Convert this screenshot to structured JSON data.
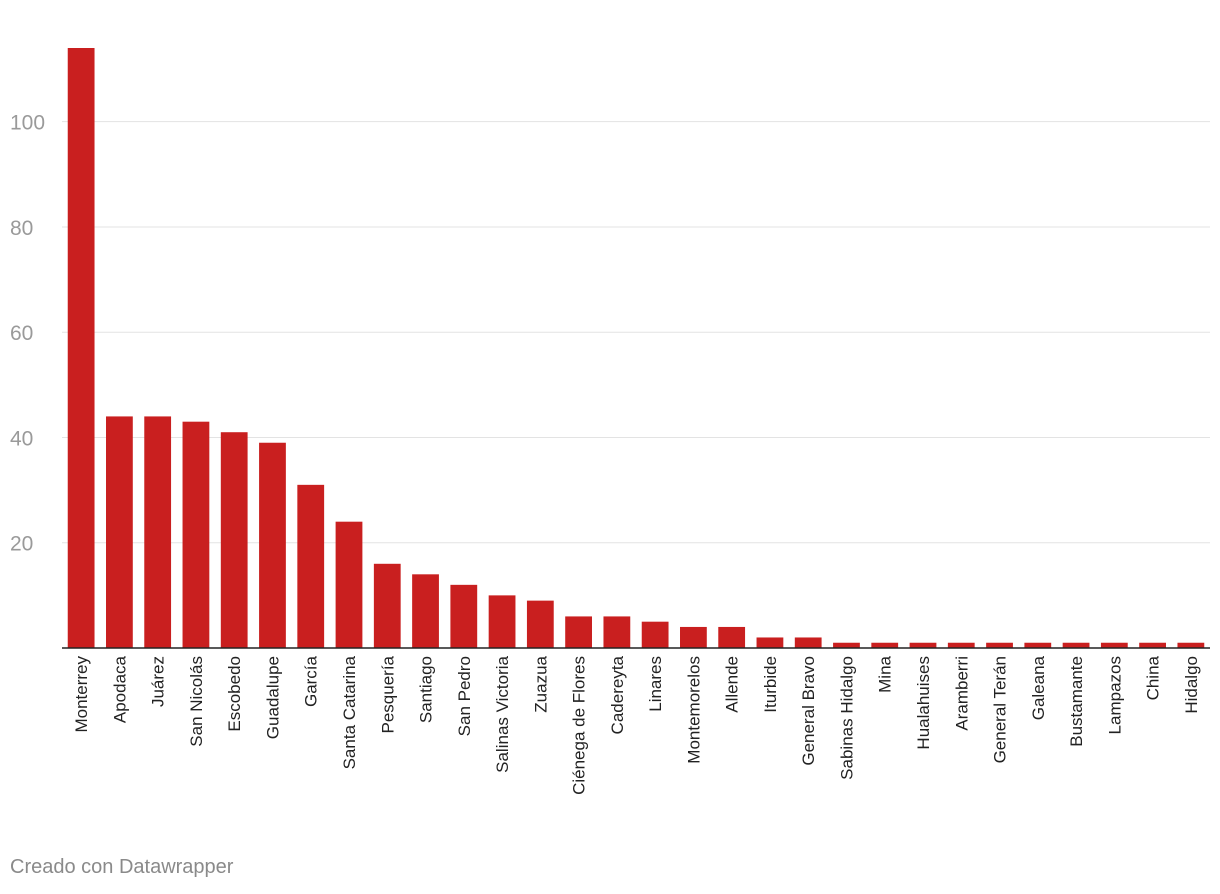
{
  "chart_data": {
    "type": "bar",
    "categories": [
      "Monterrey",
      "Apodaca",
      "Juárez",
      "San Nicolás",
      "Escobedo",
      "Guadalupe",
      "García",
      "Santa Catarina",
      "Pesquería",
      "Santiago",
      "San Pedro",
      "Salinas Victoria",
      "Zuazua",
      "Ciénega de Flores",
      "Cadereyta",
      "Linares",
      "Montemorelos",
      "Allende",
      "Iturbide",
      "General Bravo",
      "Sabinas Hidalgo",
      "Mina",
      "Hualahuises",
      "Aramberri",
      "General Terán",
      "Galeana",
      "Bustamante",
      "Lampazos",
      "China",
      "Hidalgo"
    ],
    "values": [
      114,
      44,
      44,
      43,
      41,
      39,
      31,
      24,
      16,
      14,
      12,
      10,
      9,
      6,
      6,
      5,
      4,
      4,
      2,
      2,
      1,
      1,
      1,
      1,
      1,
      1,
      1,
      1,
      1,
      1
    ],
    "title": "",
    "xlabel": "",
    "ylabel": "",
    "ylim": [
      0,
      114
    ],
    "yticks": [
      20,
      40,
      60,
      80,
      100
    ],
    "grid": true,
    "legend": "none",
    "bar_color": "#c91f1f"
  },
  "footer": {
    "credit": "Creado con Datawrapper"
  }
}
